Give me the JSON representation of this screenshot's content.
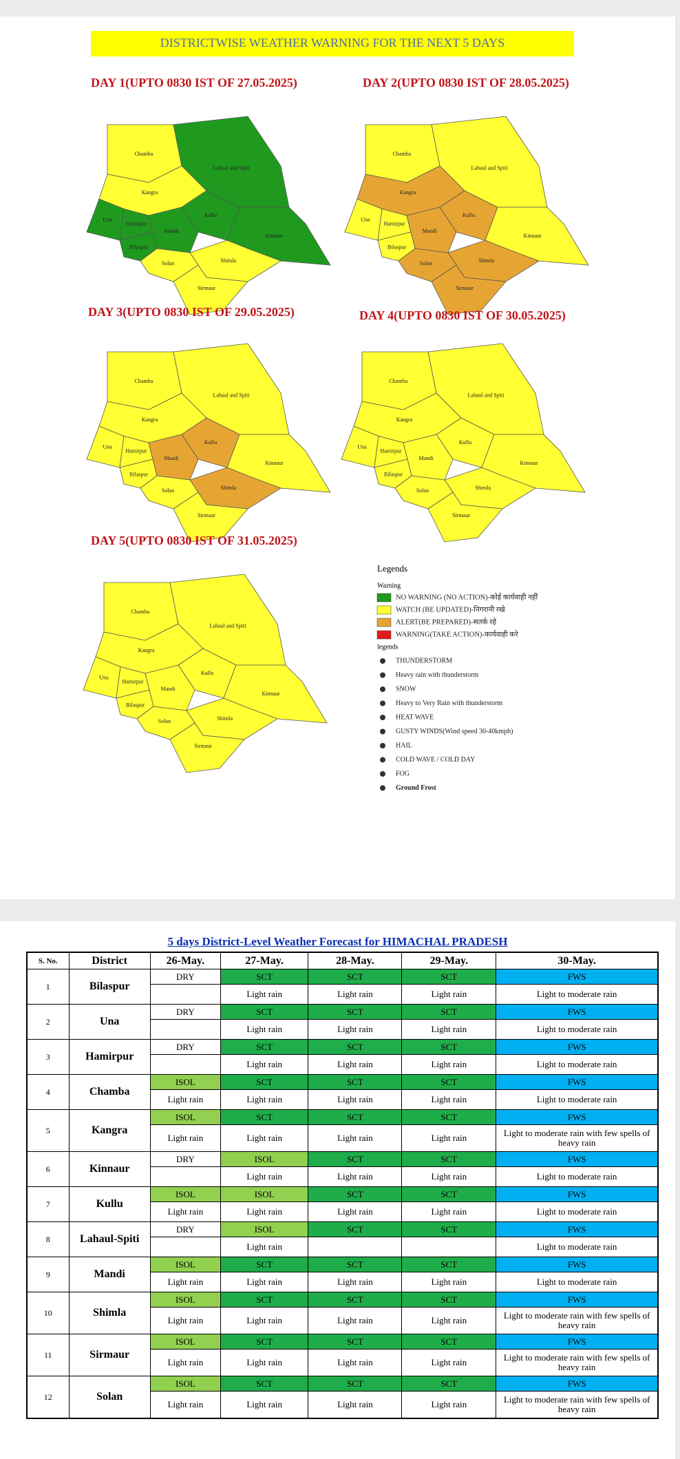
{
  "header": {
    "title": "DISTRICTWISE WEATHER WARNING FOR THE NEXT 5 DAYS"
  },
  "maps": [
    {
      "title": "DAY 1(UPTO 0830 IST OF 27.05.2025)",
      "districts": [
        {
          "name": "Chamba",
          "warning": 1
        },
        {
          "name": "Lahaul and Spiti",
          "warning": 0
        },
        {
          "name": "Kangra",
          "warning": 1
        },
        {
          "name": "Una",
          "warning": 0
        },
        {
          "name": "Hamirpur",
          "warning": 0
        },
        {
          "name": "Kullu",
          "warning": 0
        },
        {
          "name": "Mandi",
          "warning": 0
        },
        {
          "name": "Bilaspur",
          "warning": 0
        },
        {
          "name": "Kinnaur",
          "warning": 0
        },
        {
          "name": "Shimla",
          "warning": 1
        },
        {
          "name": "Solan",
          "warning": 1
        },
        {
          "name": "Sirmaur",
          "warning": 1
        }
      ]
    },
    {
      "title": "DAY 2(UPTO 0830 IST OF 28.05.2025)",
      "districts": [
        {
          "name": "Chamba",
          "warning": 1
        },
        {
          "name": "Lahaul and Spiti",
          "warning": 1
        },
        {
          "name": "Kangra",
          "warning": 2
        },
        {
          "name": "Una",
          "warning": 1
        },
        {
          "name": "Hamirpur",
          "warning": 1
        },
        {
          "name": "Kullu",
          "warning": 2
        },
        {
          "name": "Mandi",
          "warning": 2
        },
        {
          "name": "Bilaspur",
          "warning": 1
        },
        {
          "name": "Kinnaur",
          "warning": 1
        },
        {
          "name": "Shimla",
          "warning": 2
        },
        {
          "name": "Solan",
          "warning": 2
        },
        {
          "name": "Sirmaur",
          "warning": 2
        }
      ]
    },
    {
      "title": "DAY 3(UPTO 0830 IST OF 29.05.2025)",
      "districts": [
        {
          "name": "Chamba",
          "warning": 1
        },
        {
          "name": "Lahaul and Spiti",
          "warning": 1
        },
        {
          "name": "Kangra",
          "warning": 1
        },
        {
          "name": "Una",
          "warning": 1
        },
        {
          "name": "Hamirpur",
          "warning": 1
        },
        {
          "name": "Kullu",
          "warning": 2
        },
        {
          "name": "Mandi",
          "warning": 2
        },
        {
          "name": "Bilaspur",
          "warning": 1
        },
        {
          "name": "Kinnaur",
          "warning": 1
        },
        {
          "name": "Shimla",
          "warning": 2
        },
        {
          "name": "Solan",
          "warning": 1
        },
        {
          "name": "Sirmaur",
          "warning": 1
        }
      ]
    },
    {
      "title": "DAY 4(UPTO 0830 IST OF 30.05.2025)",
      "districts": [
        {
          "name": "Chamba",
          "warning": 1
        },
        {
          "name": "Lahaul and Spiti",
          "warning": 1
        },
        {
          "name": "Kangra",
          "warning": 1
        },
        {
          "name": "Una",
          "warning": 1
        },
        {
          "name": "Hamirpur",
          "warning": 1
        },
        {
          "name": "Kullu",
          "warning": 1
        },
        {
          "name": "Mandi",
          "warning": 1
        },
        {
          "name": "Bilaspur",
          "warning": 1
        },
        {
          "name": "Kinnaur",
          "warning": 1
        },
        {
          "name": "Shimla",
          "warning": 1
        },
        {
          "name": "Solan",
          "warning": 1
        },
        {
          "name": "Sirmaur",
          "warning": 1
        }
      ]
    },
    {
      "title": "DAY 5(UPTO 0830 IST OF 31.05.2025)",
      "districts": [
        {
          "name": "Chamba",
          "warning": 1
        },
        {
          "name": "Lahaul and Spiti",
          "warning": 1
        },
        {
          "name": "Kangra",
          "warning": 1
        },
        {
          "name": "Una",
          "warning": 1
        },
        {
          "name": "Hamirpur",
          "warning": 1
        },
        {
          "name": "Kullu",
          "warning": 1
        },
        {
          "name": "Mandi",
          "warning": 1
        },
        {
          "name": "Bilaspur",
          "warning": 1
        },
        {
          "name": "Kinnaur",
          "warning": 1
        },
        {
          "name": "Shimla",
          "warning": 1
        },
        {
          "name": "Solan",
          "warning": 1
        },
        {
          "name": "Sirmaur",
          "warning": 1
        }
      ]
    }
  ],
  "legend": {
    "title": "Legends",
    "warning_title": "Warning",
    "warnings": [
      {
        "label": "NO WARNING (NO ACTION)-कोई कार्यवाही नहीं",
        "color": "#1f9a1f"
      },
      {
        "label": "WATCH (BE UPDATED)-निगरानी रखे",
        "color": "#ffff33"
      },
      {
        "label": "ALERT(BE PREPARED)-सतर्क रहे",
        "color": "#e6a532"
      },
      {
        "label": "WARNING(TAKE ACTION)-कार्यवाही करे",
        "color": "#e31a1c"
      }
    ],
    "phenomena_title": "legends",
    "phenomena": [
      "THUNDERSTORM",
      "Heavy rain with thunderstorm",
      "SNOW",
      "Heavy to Very Rain with thunderstorm",
      "HEAT WAVE",
      "GUSTY WINDS(Wind speed 30-40kmph)",
      "HAIL",
      "COLD WAVE / COLD DAY",
      "FOG",
      "Ground Frost"
    ]
  },
  "table": {
    "title": "5 days District-Level Weather Forecast for HIMACHAL PRADESH",
    "headers": [
      "S. No.",
      "District",
      "26-May.",
      "27-May.",
      "28-May.",
      "29-May.",
      "30-May."
    ],
    "category_colors": {
      "DRY": "#ffffff",
      "ISOL": "#92d050",
      "SCT": "#1fad4b",
      "FWS": "#00b0f0"
    },
    "rows": [
      {
        "sno": 1,
        "district": "Bilaspur",
        "days": [
          {
            "category": "DRY",
            "text": null
          },
          {
            "category": "SCT",
            "text": "Light rain"
          },
          {
            "category": "SCT",
            "text": "Light rain"
          },
          {
            "category": "SCT",
            "text": "Light rain"
          },
          {
            "category": "FWS",
            "text": "Light to moderate rain"
          }
        ]
      },
      {
        "sno": 2,
        "district": "Una",
        "days": [
          {
            "category": "DRY",
            "text": null
          },
          {
            "category": "SCT",
            "text": "Light rain"
          },
          {
            "category": "SCT",
            "text": "Light rain"
          },
          {
            "category": "SCT",
            "text": "Light rain"
          },
          {
            "category": "FWS",
            "text": "Light to moderate rain"
          }
        ]
      },
      {
        "sno": 3,
        "district": "Hamirpur",
        "days": [
          {
            "category": "DRY",
            "text": null
          },
          {
            "category": "SCT",
            "text": "Light rain"
          },
          {
            "category": "SCT",
            "text": "Light rain"
          },
          {
            "category": "SCT",
            "text": "Light rain"
          },
          {
            "category": "FWS",
            "text": "Light to moderate rain"
          }
        ]
      },
      {
        "sno": 4,
        "district": "Chamba",
        "days": [
          {
            "category": "ISOL",
            "text": "Light rain"
          },
          {
            "category": "SCT",
            "text": "Light rain"
          },
          {
            "category": "SCT",
            "text": "Light rain"
          },
          {
            "category": "SCT",
            "text": "Light rain"
          },
          {
            "category": "FWS",
            "text": "Light to moderate rain"
          }
        ]
      },
      {
        "sno": 5,
        "district": "Kangra",
        "days": [
          {
            "category": "ISOL",
            "text": "Light rain"
          },
          {
            "category": "SCT",
            "text": "Light rain"
          },
          {
            "category": "SCT",
            "text": "Light rain"
          },
          {
            "category": "SCT",
            "text": "Light rain"
          },
          {
            "category": "FWS",
            "text": "Light to moderate rain with few spells of heavy rain"
          }
        ]
      },
      {
        "sno": 6,
        "district": "Kinnaur",
        "days": [
          {
            "category": "DRY",
            "text": null
          },
          {
            "category": "ISOL",
            "text": "Light rain"
          },
          {
            "category": "SCT",
            "text": "Light rain"
          },
          {
            "category": "SCT",
            "text": "Light rain"
          },
          {
            "category": "FWS",
            "text": "Light to moderate rain"
          }
        ]
      },
      {
        "sno": 7,
        "district": "Kullu",
        "days": [
          {
            "category": "ISOL",
            "text": "Light rain"
          },
          {
            "category": "ISOL",
            "text": "Light rain"
          },
          {
            "category": "SCT",
            "text": "Light rain"
          },
          {
            "category": "SCT",
            "text": "Light rain"
          },
          {
            "category": "FWS",
            "text": "Light to moderate rain"
          }
        ]
      },
      {
        "sno": 8,
        "district": "Lahaul-Spiti",
        "days": [
          {
            "category": "DRY",
            "text": null
          },
          {
            "category": "ISOL",
            "text": "Light rain"
          },
          {
            "category": "SCT",
            "text": null
          },
          {
            "category": "SCT",
            "text": null
          },
          {
            "category": "FWS",
            "text": "Light to moderate rain"
          }
        ]
      },
      {
        "sno": 9,
        "district": "Mandi",
        "days": [
          {
            "category": "ISOL",
            "text": "Light rain"
          },
          {
            "category": "SCT",
            "text": "Light rain"
          },
          {
            "category": "SCT",
            "text": "Light rain"
          },
          {
            "category": "SCT",
            "text": "Light rain"
          },
          {
            "category": "FWS",
            "text": "Light to moderate rain"
          }
        ]
      },
      {
        "sno": 10,
        "district": "Shimla",
        "days": [
          {
            "category": "ISOL",
            "text": "Light rain"
          },
          {
            "category": "SCT",
            "text": "Light rain"
          },
          {
            "category": "SCT",
            "text": "Light rain"
          },
          {
            "category": "SCT",
            "text": "Light rain"
          },
          {
            "category": "FWS",
            "text": "Light to moderate rain with few spells of heavy rain"
          }
        ]
      },
      {
        "sno": 11,
        "district": "Sirmaur",
        "days": [
          {
            "category": "ISOL",
            "text": "Light rain"
          },
          {
            "category": "SCT",
            "text": "Light rain"
          },
          {
            "category": "SCT",
            "text": "Light rain"
          },
          {
            "category": "SCT",
            "text": "Light rain"
          },
          {
            "category": "FWS",
            "text": "Light to moderate rain with few spells of heavy rain"
          }
        ]
      },
      {
        "sno": 12,
        "district": "Solan",
        "days": [
          {
            "category": "ISOL",
            "text": "Light rain"
          },
          {
            "category": "SCT",
            "text": "Light rain"
          },
          {
            "category": "SCT",
            "text": "Light rain"
          },
          {
            "category": "SCT",
            "text": "Light rain"
          },
          {
            "category": "FWS",
            "text": "Light to moderate rain with few spells of heavy rain"
          }
        ]
      }
    ]
  }
}
